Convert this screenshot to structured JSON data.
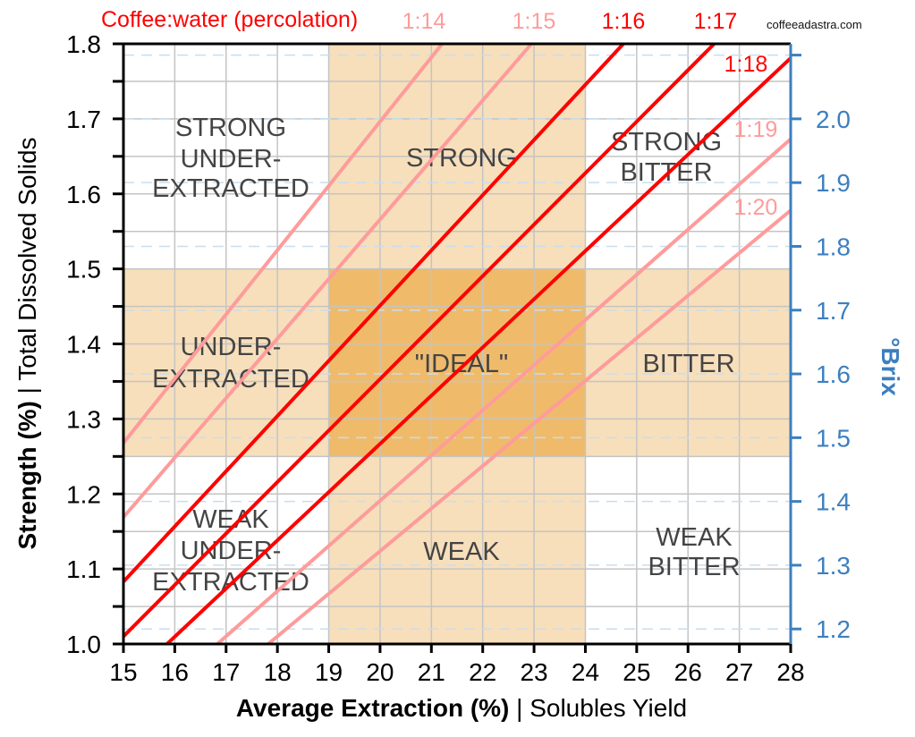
{
  "chart_data": {
    "type": "line",
    "title": "Coffee:water (percolation)",
    "watermark": "coffeeadastra.com",
    "xlabel_bold": "Average Extraction (%)",
    "xlabel_rest": " | Solubles Yield",
    "ylabel_bold": "Strength (%)",
    "ylabel_rest": " | Total Dissolved Solids",
    "y2label": "°Brix",
    "xlim": [
      15,
      28
    ],
    "ylim": [
      1.0,
      1.8
    ],
    "y2lim": [
      1.18,
      2.1
    ],
    "grid": true,
    "x_ticks": [
      "15",
      "16",
      "17",
      "18",
      "19",
      "20",
      "21",
      "22",
      "23",
      "24",
      "25",
      "26",
      "27",
      "28"
    ],
    "y_ticks": [
      "1.0",
      "1.1",
      "1.2",
      "1.3",
      "1.4",
      "1.5",
      "1.6",
      "1.7",
      "1.8"
    ],
    "y2_ticks": [
      "1.2",
      "1.3",
      "1.4",
      "1.5",
      "1.6",
      "1.7",
      "1.8",
      "1.9",
      "2.0"
    ],
    "colors": {
      "light_ratio": "#ff9b9b",
      "dark_ratio": "#ff0000",
      "zone": "#f7dfbb",
      "ideal": "#efbb6b",
      "brix_axis": "#3d7fbf",
      "zone_text": "#444444"
    },
    "series": [
      {
        "name": "1:14",
        "style": "light",
        "points": [
          [
            15,
            1.268
          ],
          [
            21.21,
            1.8
          ]
        ]
      },
      {
        "name": "1:15",
        "style": "light",
        "points": [
          [
            15,
            1.169
          ],
          [
            22.95,
            1.8
          ]
        ]
      },
      {
        "name": "1:16",
        "style": "dark",
        "points": [
          [
            15,
            1.083
          ],
          [
            24.74,
            1.8
          ]
        ]
      },
      {
        "name": "1:17",
        "style": "dark",
        "points": [
          [
            15,
            1.01
          ],
          [
            26.51,
            1.8
          ]
        ]
      },
      {
        "name": "1:18",
        "style": "dark",
        "points": [
          [
            15.85,
            1.0
          ],
          [
            28,
            1.781
          ]
        ]
      },
      {
        "name": "1:19",
        "style": "light",
        "points": [
          [
            16.83,
            1.0
          ],
          [
            28,
            1.673
          ]
        ]
      },
      {
        "name": "1:20",
        "style": "light",
        "points": [
          [
            17.82,
            1.0
          ],
          [
            28,
            1.578
          ]
        ]
      }
    ],
    "zones": {
      "ideal_extraction": [
        19,
        24
      ],
      "ideal_strength": [
        1.25,
        1.5
      ]
    },
    "zone_labels": [
      {
        "lines": [
          "STRONG",
          "UNDER-",
          "EXTRACTED"
        ]
      },
      {
        "lines": [
          "STRONG"
        ]
      },
      {
        "lines": [
          "STRONG",
          "BITTER"
        ]
      },
      {
        "lines": [
          "UNDER-",
          "EXTRACTED"
        ]
      },
      {
        "lines": [
          "\"IDEAL\""
        ]
      },
      {
        "lines": [
          "BITTER"
        ]
      },
      {
        "lines": [
          "WEAK",
          "UNDER-",
          "EXTRACTED"
        ]
      },
      {
        "lines": [
          "WEAK"
        ]
      },
      {
        "lines": [
          "WEAK",
          "BITTER"
        ]
      }
    ]
  }
}
